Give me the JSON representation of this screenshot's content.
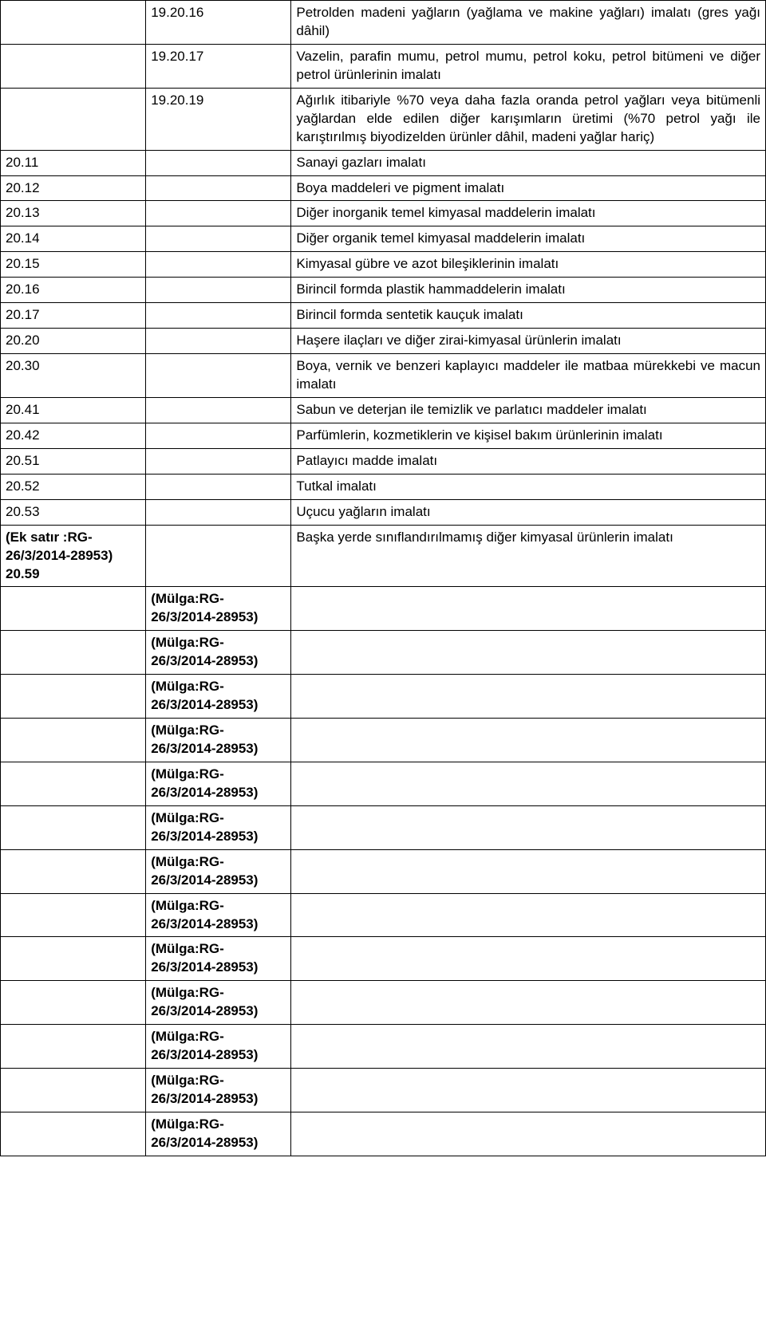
{
  "colors": {
    "text": "#000000",
    "border": "#000000",
    "background": "#ffffff"
  },
  "rows": [
    {
      "c1": "",
      "c2": "19.20.16",
      "c3": "Petrolden madeni yağların (yağlama ve makine yağları) imalatı (gres yağı dâhil)"
    },
    {
      "c1": "",
      "c2": "19.20.17",
      "c3": "Vazelin, parafin mumu, petrol mumu, petrol koku, petrol bitümeni ve diğer petrol ürünlerinin imalatı"
    },
    {
      "c1": "",
      "c2": "19.20.19",
      "c3": "Ağırlık itibariyle %70 veya daha fazla oranda petrol yağları veya bitümenli yağlardan elde edilen diğer karışımların üretimi (%70 petrol yağı ile karıştırılmış biyodizelden ürünler dâhil, madeni yağlar hariç)"
    },
    {
      "c1": "20.11",
      "c2": "",
      "c3": "Sanayi gazları imalatı"
    },
    {
      "c1": "20.12",
      "c2": "",
      "c3": "Boya maddeleri ve pigment imalatı"
    },
    {
      "c1": "20.13",
      "c2": "",
      "c3": "Diğer inorganik temel kimyasal maddelerin imalatı"
    },
    {
      "c1": "20.14",
      "c2": "",
      "c3": "Diğer organik temel kimyasal maddelerin imalatı"
    },
    {
      "c1": "20.15",
      "c2": "",
      "c3": "Kimyasal gübre ve azot bileşiklerinin imalatı"
    },
    {
      "c1": "20.16",
      "c2": "",
      "c3": "Birincil formda plastik hammaddelerin imalatı"
    },
    {
      "c1": "20.17",
      "c2": "",
      "c3": "Birincil formda sentetik kauçuk imalatı"
    },
    {
      "c1": "20.20",
      "c2": "",
      "c3": "Haşere ilaçları ve diğer zirai-kimyasal ürünlerin imalatı"
    },
    {
      "c1": "20.30",
      "c2": "",
      "c3": "Boya, vernik ve benzeri kaplayıcı maddeler ile matbaa mürekkebi ve macun imalatı"
    },
    {
      "c1": "20.41",
      "c2": "",
      "c3": "Sabun ve deterjan ile temizlik ve parlatıcı maddeler imalatı"
    },
    {
      "c1": "20.42",
      "c2": "",
      "c3": "Parfümlerin, kozmetiklerin ve kişisel bakım ürünlerinin imalatı"
    },
    {
      "c1": "20.51",
      "c2": "",
      "c3": "Patlayıcı madde imalatı"
    },
    {
      "c1": "20.52",
      "c2": "",
      "c3": "Tutkal imalatı"
    },
    {
      "c1": "20.53",
      "c2": "",
      "c3": "Uçucu yağların imalatı"
    },
    {
      "c1": "(Ek satır :RG-26/3/2014-28953) 20.59",
      "c2": "",
      "c3": " Başka yerde sınıflandırılmamış diğer kimyasal ürünlerin imalatı",
      "bold": true
    },
    {
      "c1": "",
      "c2": "(Mülga:RG-26/3/2014-28953)",
      "c3": "",
      "bold": true
    },
    {
      "c1": "",
      "c2": "(Mülga:RG-26/3/2014-28953)",
      "c3": "",
      "bold": true
    },
    {
      "c1": "",
      "c2": "(Mülga:RG-26/3/2014-28953)",
      "c3": "",
      "bold": true
    },
    {
      "c1": "",
      "c2": "(Mülga:RG-26/3/2014-28953)",
      "c3": "",
      "bold": true
    },
    {
      "c1": "",
      "c2": "(Mülga:RG-26/3/2014-28953)",
      "c3": "",
      "bold": true
    },
    {
      "c1": "",
      "c2": "(Mülga:RG-26/3/2014-28953)",
      "c3": "",
      "bold": true
    },
    {
      "c1": "",
      "c2": "(Mülga:RG-26/3/2014-28953)",
      "c3": "",
      "bold": true
    },
    {
      "c1": "",
      "c2": "(Mülga:RG-26/3/2014-28953)",
      "c3": "",
      "bold": true
    },
    {
      "c1": "",
      "c2": "(Mülga:RG-26/3/2014-28953)",
      "c3": "",
      "bold": true
    },
    {
      "c1": "",
      "c2": "(Mülga:RG-26/3/2014-28953)",
      "c3": "",
      "bold": true
    },
    {
      "c1": "",
      "c2": "(Mülga:RG-26/3/2014-28953)",
      "c3": "",
      "bold": true
    },
    {
      "c1": "",
      "c2": "(Mülga:RG-26/3/2014-28953)",
      "c3": "",
      "bold": true
    },
    {
      "c1": "",
      "c2": "(Mülga:RG-26/3/2014-28953)",
      "c3": "",
      "bold": true
    }
  ]
}
